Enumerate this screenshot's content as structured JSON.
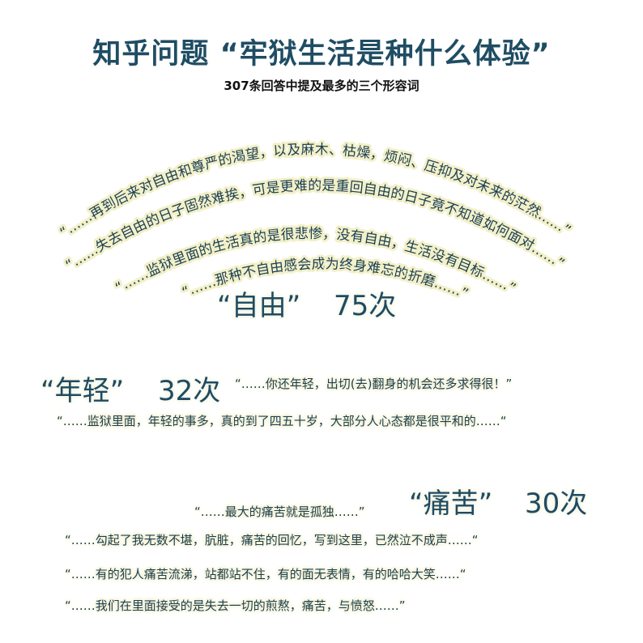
{
  "title": "知乎问题 “牢狱生活是种什么体验”",
  "subtitle": "307条回答中提及最多的三个形容词",
  "freedom": {
    "word": "“自由”",
    "count": "75次",
    "quotes": [
      "“……再到后来对自由和尊严的渴望，以及麻木、枯燥，烦闷、压抑及对未来的茫然……”",
      "“……失去自由的日子固然难挨，可是更难的是重回自由的日子竟不知道如何面对……”",
      "“……监狱里面的生活真的是很悲惨，没有自由，生活没有目标……”",
      "“……那种不自由感会成为终身难忘的折磨……”"
    ]
  },
  "youth": {
    "word": "“年轻”",
    "count": "32次",
    "quotes": [
      "“……你还年轻，出切(去)翻身的机会还多求得很！”",
      "“……监狱里面，年轻的事多，真的到了四五十岁，大部分人心态都是很平和的……“"
    ]
  },
  "pain": {
    "word": "“痛苦”",
    "count": "30次",
    "quotes": [
      "“……最大的痛苦就是孤独……”",
      "“……勾起了我无数不堪，肮脏，痛苦的回忆，写到这里，已然泣不成声……“",
      "“……有的犯人痛苦流涕，站都站不住，有的面无表情，有的哈哈大笑……“",
      "“……我们在里面接受的是失去一切的煎熬，痛苦，与愤怒……”"
    ]
  }
}
